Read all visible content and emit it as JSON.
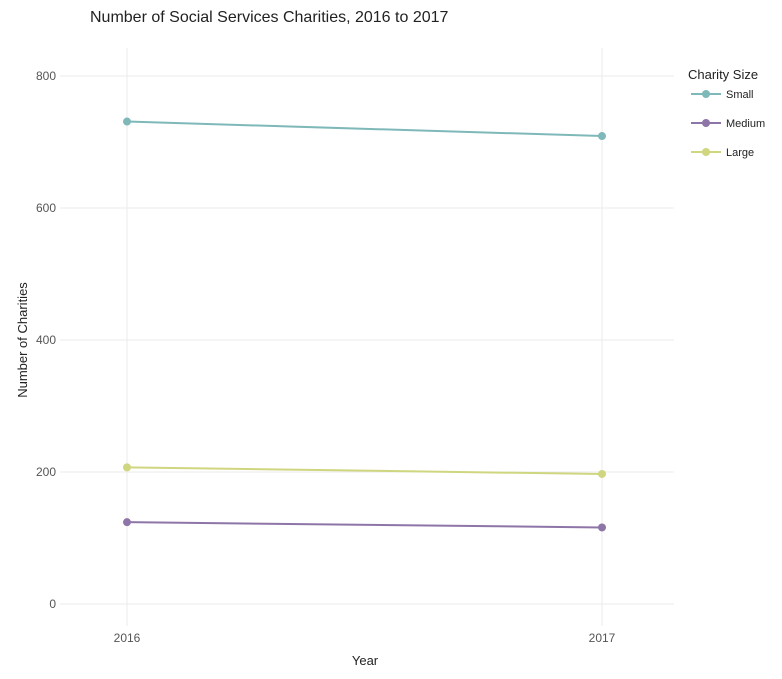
{
  "chart_data": {
    "type": "line",
    "title": "Number of Social Services Charities, 2016 to 2017",
    "xlabel": "Year",
    "ylabel": "Number of Charities",
    "categories": [
      "2016",
      "2017"
    ],
    "yticks": [
      "0",
      "200",
      "400",
      "600",
      "800"
    ],
    "ylim": [
      -20,
      845
    ],
    "grid": true,
    "legend": {
      "title": "Charity Size",
      "position": "top-right"
    },
    "series": [
      {
        "name": "Small",
        "color": "#7fb8b8",
        "values": [
          731,
          709
        ]
      },
      {
        "name": "Medium",
        "color": "#8e75a8",
        "values": [
          124,
          116
        ]
      },
      {
        "name": "Large",
        "color": "#cfd67f",
        "values": [
          207,
          197
        ]
      }
    ]
  }
}
